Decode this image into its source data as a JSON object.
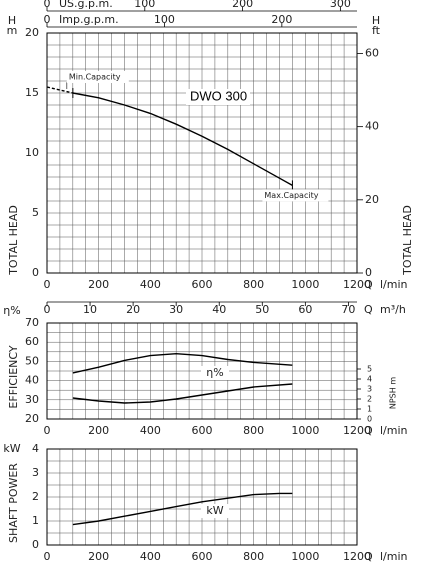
{
  "chart_data": [
    {
      "type": "line",
      "grid": true,
      "x_symbol": "Q",
      "x_unit": "l/min",
      "xlim": [
        0,
        1200
      ],
      "xticks": [
        0,
        200,
        400,
        600,
        800,
        1000,
        1200
      ],
      "y_symbol": "H",
      "y_unit": "m",
      "y_label": "TOTAL HEAD",
      "ylim": [
        0,
        20
      ],
      "yticks": [
        0,
        5,
        10,
        15,
        20
      ],
      "y2_symbol": "H",
      "y2_unit": "ft",
      "y2_label": "TOTAL HEAD",
      "y2lim": [
        0,
        65.6
      ],
      "y2ticks": [
        0,
        20,
        40,
        60
      ],
      "top_axes": [
        {
          "label": "US.g.p.m.",
          "xlim": [
            0,
            317
          ],
          "xticks": [
            0,
            100,
            200,
            300
          ]
        },
        {
          "label": "Imp.g.p.m.",
          "xlim": [
            0,
            264
          ],
          "xticks": [
            0,
            100,
            200
          ]
        }
      ],
      "bottom_axis": {
        "symbol": "Q",
        "unit": "m³/h",
        "xlim": [
          0,
          72
        ],
        "xticks": [
          0,
          10,
          20,
          30,
          40,
          50,
          60,
          70
        ]
      },
      "series": [
        {
          "x": [
            0,
            100
          ],
          "values": [
            15.5,
            15.0
          ],
          "color": "#000000",
          "dashed": true
        },
        {
          "x": [
            100,
            200,
            300,
            400,
            500,
            600,
            700,
            800,
            900,
            950
          ],
          "values": [
            15.0,
            14.6,
            14.0,
            13.3,
            12.4,
            11.4,
            10.3,
            9.1,
            7.9,
            7.3
          ],
          "color": "#000000"
        }
      ],
      "annotations": {
        "min": "Min.Capacity",
        "max": "Max.Capacity",
        "model": "DWO 300"
      }
    },
    {
      "type": "line",
      "grid": true,
      "x_symbol": "Q",
      "x_unit": "l/min",
      "xlim": [
        0,
        1200
      ],
      "xticks": [
        0,
        200,
        400,
        600,
        800,
        1000,
        1200
      ],
      "y_symbol": "η%",
      "y_label": "EFFICIENCY",
      "ylim": [
        20,
        70
      ],
      "yticks": [
        20,
        30,
        40,
        50,
        60,
        70
      ],
      "y2_label": "NPSH m",
      "y2lim": [
        0,
        9.6
      ],
      "y2ticks": [
        0,
        1,
        2,
        3,
        4,
        5
      ],
      "series": [
        {
          "label": "η%",
          "x": [
            100,
            200,
            300,
            400,
            500,
            600,
            700,
            800,
            950
          ],
          "values": [
            44,
            47,
            50.5,
            53,
            54,
            53,
            51,
            49.5,
            48
          ],
          "color": "#000000"
        },
        {
          "x": [
            100,
            200,
            300,
            400,
            500,
            600,
            700,
            800,
            950
          ],
          "values": [
            2.1,
            1.8,
            1.6,
            1.7,
            2.0,
            2.4,
            2.8,
            3.2,
            3.5
          ],
          "color": "#000000",
          "axis": "y2"
        }
      ]
    },
    {
      "type": "line",
      "grid": true,
      "x_symbol": "Q",
      "x_unit": "l/min",
      "xlim": [
        0,
        1200
      ],
      "xticks": [
        0,
        200,
        400,
        600,
        800,
        1000,
        1200
      ],
      "y_unit": "kW",
      "y_label": "SHAFT POWER",
      "ylim": [
        0,
        4
      ],
      "yticks": [
        0,
        1,
        2,
        3,
        4
      ],
      "series": [
        {
          "label": "kW",
          "x": [
            100,
            200,
            300,
            400,
            500,
            600,
            700,
            800,
            900,
            950
          ],
          "values": [
            0.85,
            1.0,
            1.2,
            1.4,
            1.6,
            1.8,
            1.95,
            2.1,
            2.15,
            2.15
          ],
          "color": "#000000"
        }
      ]
    }
  ]
}
